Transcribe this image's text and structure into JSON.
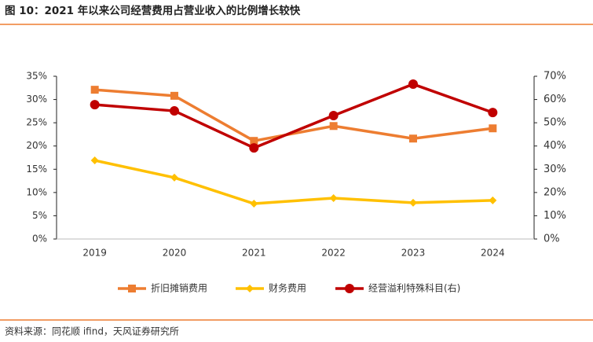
{
  "chart_data": {
    "type": "line",
    "title": "图 10：2021 年以来公司经营费用占营业收入的比例增长较快",
    "source": "资料来源：同花顺 ifind，天风证券研究所",
    "categories": [
      "2019",
      "2020",
      "2021",
      "2022",
      "2023",
      "2024"
    ],
    "series": [
      {
        "name": "折旧摊销费用",
        "color": "#ED7D31",
        "marker": "square",
        "values": [
          32.1,
          30.8,
          21.1,
          24.3,
          21.6,
          23.8
        ]
      },
      {
        "name": "财务费用",
        "color": "#FFC000",
        "marker": "diamond",
        "values": [
          16.9,
          13.2,
          7.6,
          8.8,
          7.8,
          8.3
        ]
      },
      {
        "name": "经营溢利特殊科目(右)",
        "color": "#C00000",
        "marker": "circle",
        "axis": "y2",
        "values": [
          57.8,
          55.1,
          39.2,
          53.1,
          66.6,
          54.4
        ]
      }
    ],
    "ylim": [
      0,
      35
    ],
    "yticks": [
      {
        "value": 0,
        "label": "0%"
      },
      {
        "value": 5,
        "label": "5%"
      },
      {
        "value": 10,
        "label": "10%"
      },
      {
        "value": 15,
        "label": "15%"
      },
      {
        "value": 20,
        "label": "20%"
      },
      {
        "value": 25,
        "label": "25%"
      },
      {
        "value": 30,
        "label": "30%"
      },
      {
        "value": 35,
        "label": "35%"
      }
    ],
    "y2lim": [
      0,
      70
    ],
    "y2ticks": [
      {
        "value": 0,
        "label": "0%"
      },
      {
        "value": 10,
        "label": "10%"
      },
      {
        "value": 20,
        "label": "20%"
      },
      {
        "value": 30,
        "label": "30%"
      },
      {
        "value": 40,
        "label": "40%"
      },
      {
        "value": 50,
        "label": "50%"
      },
      {
        "value": 60,
        "label": "60%"
      },
      {
        "value": 70,
        "label": "70%"
      }
    ],
    "grid": false,
    "legend": "bottom"
  }
}
